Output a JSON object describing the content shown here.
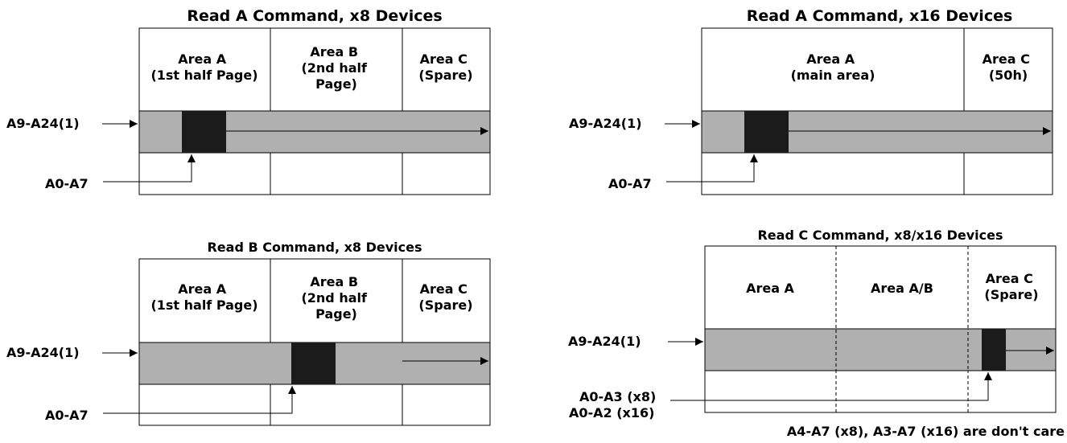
{
  "diagram_a_x8": {
    "title": "Read A Command, x8 Devices",
    "area_a": [
      "Area A",
      "(1st half Page)"
    ],
    "area_b": [
      "Area B",
      "(2nd half",
      "Page)"
    ],
    "area_c": [
      "Area C",
      "(Spare)"
    ],
    "row_label": "A9-A24(1)",
    "col_label": "A0-A7"
  },
  "diagram_a_x16": {
    "title": "Read A Command, x16 Devices",
    "area_a": [
      "Area A",
      "(main area)"
    ],
    "area_c": [
      "Area C",
      "(50h)"
    ],
    "row_label": "A9-A24(1)",
    "col_label": "A0-A7"
  },
  "diagram_b_x8": {
    "title": "Read B Command, x8 Devices",
    "area_a": [
      "Area A",
      "(1st half Page)"
    ],
    "area_b": [
      "Area B",
      "(2nd half",
      "Page)"
    ],
    "area_c": [
      "Area C",
      "(Spare)"
    ],
    "row_label": "A9-A24(1)",
    "col_label": "A0-A7"
  },
  "diagram_c": {
    "title": "Read C Command, x8/x16 Devices",
    "area_a": [
      "Area A"
    ],
    "area_ab": [
      "Area A/B"
    ],
    "area_c": [
      "Area C",
      "(Spare)"
    ],
    "row_label": "A9-A24(1)",
    "col_label": [
      "A0-A3 (x8)",
      "A0-A2 (x16)"
    ],
    "note": "A4-A7 (x8), A3-A7 (x16) are don't care"
  }
}
